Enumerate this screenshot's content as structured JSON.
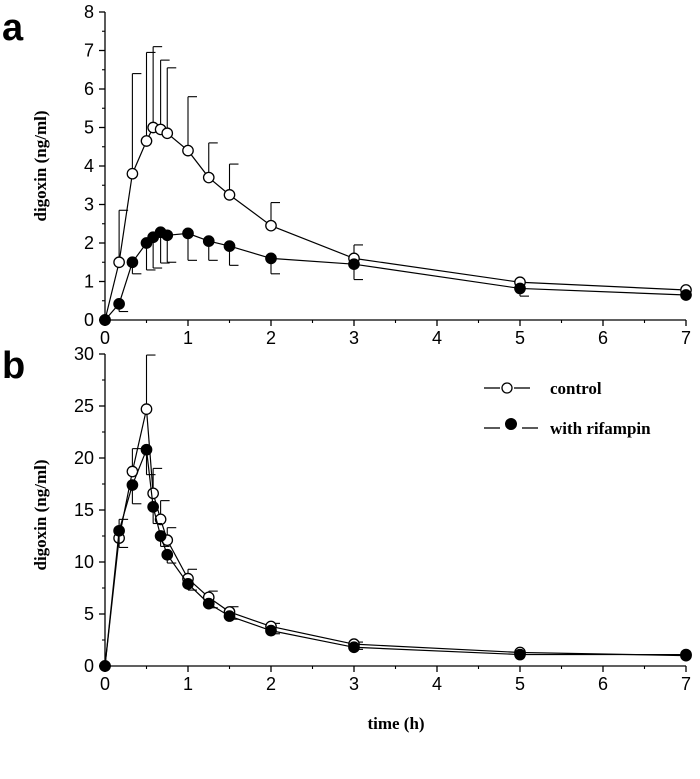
{
  "chart_data": [
    {
      "type": "line",
      "panel": "a",
      "xlabel": "",
      "ylabel": "digoxin (ng/ml)",
      "xlim": [
        0,
        7
      ],
      "ylim": [
        0,
        8
      ],
      "xticks": [
        0,
        1,
        2,
        3,
        4,
        5,
        6,
        7
      ],
      "yticks": [
        0,
        1,
        2,
        3,
        4,
        5,
        6,
        7,
        8
      ],
      "grid": false,
      "series": [
        {
          "name": "control",
          "marker": "open-circle",
          "x": [
            0,
            0.17,
            0.33,
            0.5,
            0.58,
            0.67,
            0.75,
            1,
            1.25,
            1.5,
            2,
            3,
            5,
            7
          ],
          "y": [
            0,
            1.5,
            3.8,
            4.65,
            5.0,
            4.95,
            4.85,
            4.4,
            3.7,
            3.25,
            2.45,
            1.6,
            0.98,
            0.78
          ],
          "err_up": [
            0,
            1.35,
            2.6,
            2.3,
            2.1,
            1.8,
            1.7,
            1.4,
            0.9,
            0.8,
            0.6,
            0.35,
            0,
            0
          ]
        },
        {
          "name": "with rifampin",
          "marker": "filled-circle",
          "x": [
            0,
            0.17,
            0.33,
            0.5,
            0.58,
            0.67,
            0.75,
            1,
            1.25,
            1.5,
            2,
            3,
            5,
            7
          ],
          "y": [
            0,
            0.42,
            1.5,
            2.0,
            2.15,
            2.28,
            2.2,
            2.25,
            2.05,
            1.92,
            1.6,
            1.45,
            0.82,
            0.65
          ],
          "err_down": [
            0,
            0.2,
            0.3,
            0.7,
            0.8,
            0.8,
            0.7,
            0.7,
            0.5,
            0.5,
            0.4,
            0.4,
            0.2,
            0
          ]
        }
      ]
    },
    {
      "type": "line",
      "panel": "b",
      "xlabel": "time (h)",
      "ylabel": "digoxin (ng/ml)",
      "xlim": [
        0,
        7
      ],
      "ylim": [
        0,
        30
      ],
      "xticks": [
        0,
        1,
        2,
        3,
        4,
        5,
        6,
        7
      ],
      "yticks": [
        0,
        5,
        10,
        15,
        20,
        25,
        30
      ],
      "grid": false,
      "legend": "top-right",
      "series": [
        {
          "name": "control",
          "marker": "open-circle",
          "x": [
            0,
            0.17,
            0.33,
            0.5,
            0.58,
            0.67,
            0.75,
            1,
            1.25,
            1.5,
            2,
            3,
            5,
            7
          ],
          "y": [
            0,
            12.3,
            18.7,
            24.7,
            16.6,
            14.1,
            12.1,
            8.4,
            6.6,
            5.2,
            3.8,
            2.1,
            1.3,
            1.0
          ],
          "err_up": [
            0,
            1.8,
            2.2,
            5.2,
            2.4,
            1.8,
            1.2,
            0.9,
            0.6,
            0.5,
            0.3,
            0.2,
            0,
            0
          ]
        },
        {
          "name": "with rifampin",
          "marker": "filled-circle",
          "x": [
            0,
            0.17,
            0.33,
            0.5,
            0.58,
            0.67,
            0.75,
            1,
            1.25,
            1.5,
            2,
            3,
            5,
            7
          ],
          "y": [
            0,
            13.0,
            17.4,
            20.8,
            15.3,
            12.5,
            10.7,
            7.9,
            6.0,
            4.8,
            3.4,
            1.8,
            1.1,
            1.1
          ],
          "err_down": [
            0,
            1.6,
            1.8,
            2.4,
            1.6,
            1.0,
            0.8,
            0.6,
            0.4,
            0.3,
            0.3,
            0.2,
            0,
            0
          ]
        }
      ]
    }
  ],
  "panel_labels": {
    "a": "a",
    "b": "b"
  },
  "legend": {
    "control": "control",
    "rifampin": "with rifampin"
  }
}
